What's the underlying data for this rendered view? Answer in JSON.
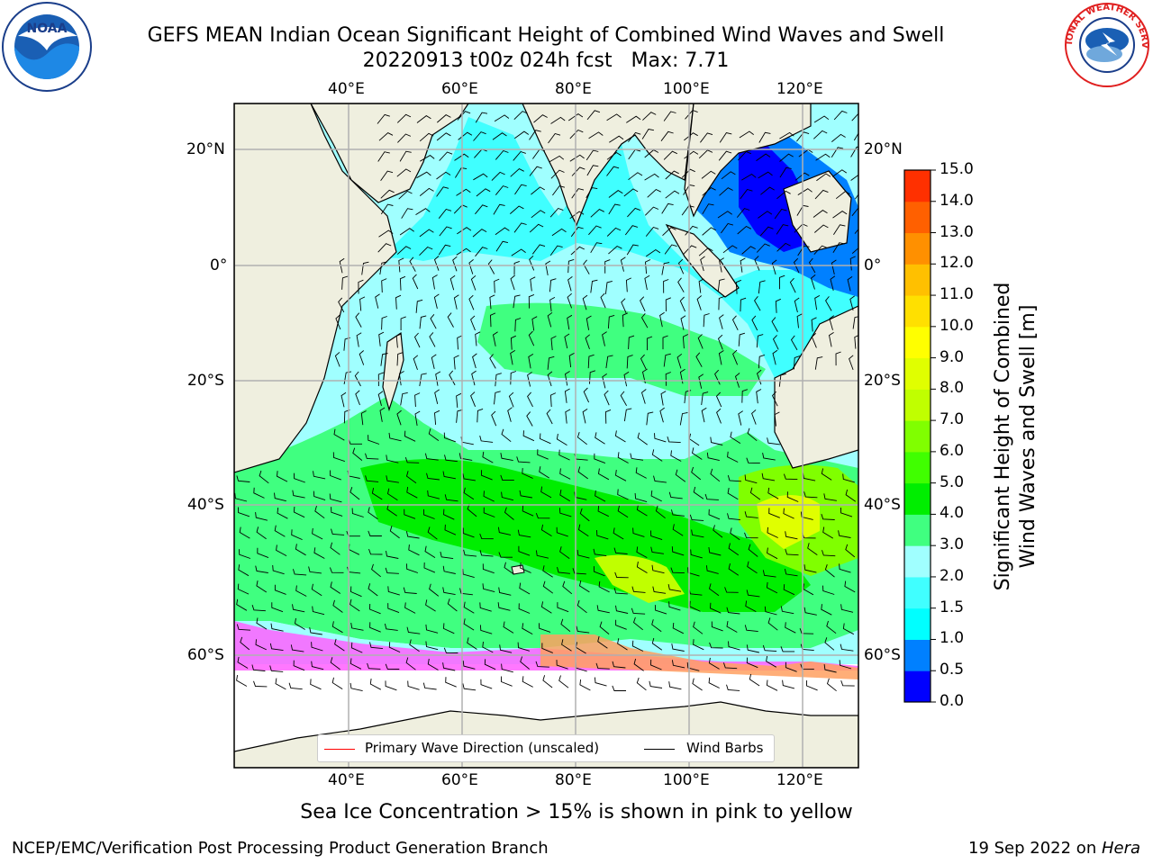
{
  "title": {
    "line1": "GEFS MEAN Indian Ocean Significant Height of Combined Wind Waves and Swell",
    "line2": "20220913 t00z 024h fcst   Max: 7.71"
  },
  "logos": {
    "left_name": "noaa-logo",
    "left_text": "NOAA",
    "right_name": "nws-logo",
    "right_text": "NATIONAL WEATHER SERVICE"
  },
  "map": {
    "lon_ticks": [
      "40°E",
      "60°E",
      "80°E",
      "100°E",
      "120°E"
    ],
    "lat_ticks": [
      "20°N",
      "0°",
      "20°S",
      "40°S",
      "60°S"
    ],
    "colors": {
      "land": "#efefdf",
      "ice_background": "#ffffff",
      "grid": "#b0b0b0",
      "wave_arrow": "#ff0000",
      "wind_barb": "#000000"
    }
  },
  "legend": {
    "primary_wave": "Primary Wave Direction (unscaled)",
    "wind_barbs": "Wind Barbs"
  },
  "colorbar": {
    "label_line1": "Significant Height of Combined",
    "label_line2": "Wind Waves and Swell [m]",
    "ticks": [
      "15.0",
      "14.0",
      "13.0",
      "12.0",
      "11.0",
      "10.0",
      "9.0",
      "8.0",
      "7.0",
      "6.0",
      "5.0",
      "4.0",
      "3.0",
      "2.0",
      "1.5",
      "1.0",
      "0.5",
      "0.0"
    ],
    "colors": [
      "#0000ff",
      "#0080ff",
      "#00ffff",
      "#40ffff",
      "#a0ffff",
      "#40ff80",
      "#00ee00",
      "#40ff00",
      "#80ff00",
      "#c0ff00",
      "#e0ff00",
      "#ffff00",
      "#ffe000",
      "#ffc000",
      "#ff9000",
      "#ff6000",
      "#ff3000"
    ]
  },
  "caption": "Sea Ice Concentration > 15% is shown in pink to yellow",
  "footer": {
    "left": "NCEP/EMC/Verification Post Processing Product Generation Branch",
    "right_date": "19 Sep 2022 on ",
    "right_host": "Hera"
  }
}
